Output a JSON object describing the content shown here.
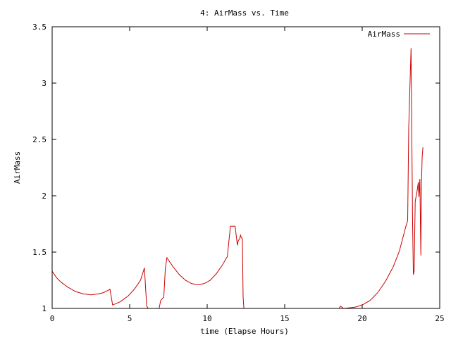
{
  "chart_data": {
    "type": "line",
    "title": "4: AirMass vs. Time",
    "xlabel": "time (Elapse Hours)",
    "ylabel": "AirMass",
    "xlim": [
      0,
      25
    ],
    "ylim": [
      1,
      3.5
    ],
    "xticks": [
      0,
      5,
      10,
      15,
      20,
      25
    ],
    "yticks": [
      1,
      1.5,
      2,
      2.5,
      3,
      3.5
    ],
    "xtick_labels": [
      "0",
      "5",
      "10",
      "15",
      "20",
      "25"
    ],
    "ytick_labels": [
      "1",
      "1.5",
      "2",
      "2.5",
      "3",
      "3.5"
    ],
    "grid": false,
    "legend_position": "top-right",
    "series": [
      {
        "name": "AirMass",
        "color": "#cc0000",
        "x": [
          0.0,
          0.3,
          0.6,
          1.0,
          1.5,
          2.0,
          2.5,
          3.0,
          3.3,
          3.6,
          3.73,
          3.9,
          4.4,
          4.9,
          5.3,
          5.7,
          5.95,
          6.1,
          6.2,
          6.9,
          7.0,
          7.2,
          7.3,
          7.4,
          7.8,
          8.2,
          8.6,
          9.0,
          9.4,
          9.8,
          10.2,
          10.6,
          11.0,
          11.3,
          11.5,
          11.7,
          11.8,
          11.95,
          12.0,
          12.1,
          12.15,
          12.2,
          12.27,
          12.32,
          12.37,
          18.5,
          18.6,
          18.8,
          19.5,
          20.0,
          20.5,
          21.0,
          21.5,
          22.0,
          22.4,
          22.8,
          22.93,
          23.0,
          23.15,
          23.25,
          23.3,
          23.35,
          23.42,
          23.55,
          23.62,
          23.66,
          23.72,
          23.78,
          23.82,
          23.87,
          23.92
        ],
        "y": [
          1.33,
          1.27,
          1.23,
          1.19,
          1.15,
          1.13,
          1.12,
          1.13,
          1.14,
          1.16,
          1.17,
          1.03,
          1.06,
          1.11,
          1.17,
          1.25,
          1.36,
          1.02,
          1.0,
          1.0,
          1.07,
          1.1,
          1.35,
          1.45,
          1.37,
          1.3,
          1.25,
          1.22,
          1.21,
          1.22,
          1.25,
          1.31,
          1.39,
          1.46,
          1.73,
          1.73,
          1.73,
          1.56,
          1.6,
          1.62,
          1.65,
          1.63,
          1.62,
          1.1,
          1.0,
          1.0,
          1.02,
          1.0,
          1.01,
          1.03,
          1.07,
          1.14,
          1.24,
          1.37,
          1.51,
          1.72,
          1.78,
          2.6,
          3.31,
          1.75,
          1.3,
          1.33,
          1.95,
          2.05,
          2.12,
          1.99,
          2.15,
          1.47,
          2.09,
          2.35,
          2.43
        ]
      }
    ]
  }
}
